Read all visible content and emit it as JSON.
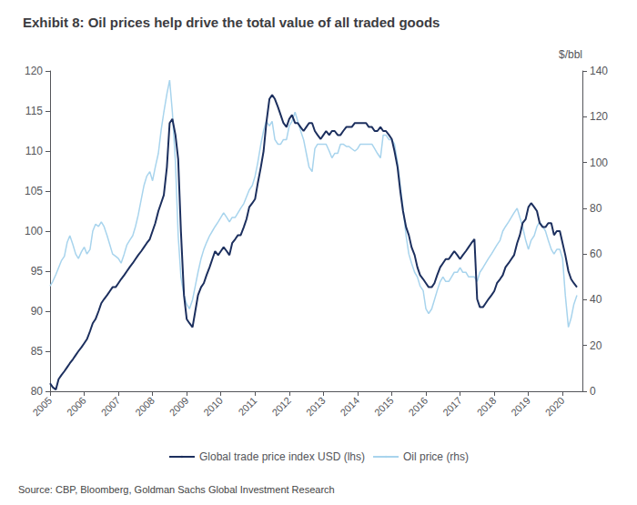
{
  "chart_data": {
    "type": "line",
    "title": "Exhibit 8: Oil prices help drive the total value of all traded goods",
    "annotations": [
      "Source: CBP, Bloomberg, Goldman Sachs Global Investment Research"
    ],
    "y2label": "$/bbl",
    "x": [
      2005.0,
      2005.08,
      2005.17,
      2005.25,
      2005.33,
      2005.42,
      2005.5,
      2005.58,
      2005.67,
      2005.75,
      2005.83,
      2005.92,
      2006.0,
      2006.08,
      2006.17,
      2006.25,
      2006.33,
      2006.42,
      2006.5,
      2006.58,
      2006.67,
      2006.75,
      2006.83,
      2006.92,
      2007.0,
      2007.08,
      2007.17,
      2007.25,
      2007.33,
      2007.42,
      2007.5,
      2007.58,
      2007.67,
      2007.75,
      2007.83,
      2007.92,
      2008.0,
      2008.08,
      2008.17,
      2008.25,
      2008.33,
      2008.42,
      2008.5,
      2008.58,
      2008.67,
      2008.75,
      2008.83,
      2008.92,
      2009.0,
      2009.08,
      2009.17,
      2009.25,
      2009.33,
      2009.42,
      2009.5,
      2009.58,
      2009.67,
      2009.75,
      2009.83,
      2009.92,
      2010.0,
      2010.08,
      2010.17,
      2010.25,
      2010.33,
      2010.42,
      2010.5,
      2010.58,
      2010.67,
      2010.75,
      2010.83,
      2010.92,
      2011.0,
      2011.08,
      2011.17,
      2011.25,
      2011.33,
      2011.42,
      2011.5,
      2011.58,
      2011.67,
      2011.75,
      2011.83,
      2011.92,
      2012.0,
      2012.08,
      2012.17,
      2012.25,
      2012.33,
      2012.42,
      2012.5,
      2012.58,
      2012.67,
      2012.75,
      2012.83,
      2012.92,
      2013.0,
      2013.08,
      2013.17,
      2013.25,
      2013.33,
      2013.42,
      2013.5,
      2013.58,
      2013.67,
      2013.75,
      2013.83,
      2013.92,
      2014.0,
      2014.08,
      2014.17,
      2014.25,
      2014.33,
      2014.42,
      2014.5,
      2014.58,
      2014.67,
      2014.75,
      2014.83,
      2014.92,
      2015.0,
      2015.08,
      2015.17,
      2015.25,
      2015.33,
      2015.42,
      2015.5,
      2015.58,
      2015.67,
      2015.75,
      2015.83,
      2015.92,
      2016.0,
      2016.08,
      2016.17,
      2016.25,
      2016.33,
      2016.42,
      2016.5,
      2016.58,
      2016.67,
      2016.75,
      2016.83,
      2016.92,
      2017.0,
      2017.08,
      2017.17,
      2017.25,
      2017.33,
      2017.42,
      2017.5,
      2017.58,
      2017.67,
      2017.75,
      2017.83,
      2017.92,
      2018.0,
      2018.08,
      2018.17,
      2018.25,
      2018.33,
      2018.42,
      2018.5,
      2018.58,
      2018.67,
      2018.75,
      2018.83,
      2018.92,
      2019.0,
      2019.08,
      2019.17,
      2019.25,
      2019.33,
      2019.42,
      2019.5,
      2019.58,
      2019.67,
      2019.75,
      2019.83,
      2019.92,
      2020.0,
      2020.08,
      2020.17,
      2020.25,
      2020.33,
      2020.42
    ],
    "series": [
      {
        "name": "Global trade price index USD (lhs)",
        "color": "#1c2f5e",
        "values": [
          81.0,
          80.5,
          80.2,
          81.5,
          82.0,
          82.5,
          83.0,
          83.5,
          84.0,
          84.5,
          85.0,
          85.5,
          86.0,
          86.5,
          87.5,
          88.5,
          89.0,
          90.0,
          91.0,
          91.5,
          92.0,
          92.5,
          93.0,
          93.0,
          93.5,
          94.0,
          94.5,
          95.0,
          95.5,
          96.0,
          96.5,
          97.0,
          97.5,
          98.0,
          98.5,
          99.0,
          100.0,
          101.0,
          102.5,
          103.5,
          104.5,
          108.0,
          113.5,
          114.0,
          112.0,
          109.0,
          100.0,
          92.0,
          89.0,
          88.5,
          88.0,
          90.0,
          92.0,
          93.0,
          93.5,
          94.5,
          95.5,
          96.5,
          97.5,
          97.0,
          97.5,
          98.0,
          97.5,
          97.0,
          98.5,
          99.0,
          99.5,
          99.5,
          100.5,
          101.5,
          103.0,
          103.5,
          104.0,
          106.0,
          108.0,
          110.0,
          113.5,
          116.5,
          117.0,
          116.5,
          115.5,
          114.5,
          113.5,
          113.0,
          114.0,
          114.5,
          113.5,
          113.5,
          113.0,
          112.5,
          113.0,
          113.5,
          113.5,
          112.5,
          112.0,
          111.5,
          112.0,
          112.5,
          112.0,
          112.5,
          112.5,
          112.0,
          112.0,
          112.5,
          113.0,
          113.0,
          113.0,
          113.5,
          113.5,
          113.5,
          113.5,
          113.5,
          113.0,
          113.0,
          112.5,
          112.5,
          113.0,
          112.5,
          112.5,
          112.0,
          111.5,
          110.0,
          108.0,
          105.0,
          102.5,
          100.5,
          99.5,
          98.0,
          97.0,
          95.5,
          94.5,
          94.0,
          93.5,
          93.0,
          93.0,
          93.5,
          94.5,
          95.5,
          96.0,
          96.5,
          96.5,
          97.0,
          97.5,
          97.0,
          96.5,
          97.0,
          97.5,
          98.0,
          98.5,
          99.0,
          91.5,
          90.5,
          90.5,
          91.0,
          91.5,
          92.0,
          92.5,
          93.5,
          94.0,
          94.5,
          95.5,
          96.0,
          96.5,
          97.0,
          98.5,
          99.5,
          101.0,
          101.5,
          103.0,
          103.5,
          103.0,
          102.5,
          101.0,
          100.5,
          100.5,
          101.0,
          101.0,
          99.5,
          100.0,
          100.0,
          98.5,
          97.0,
          95.0,
          94.0,
          93.5,
          93.0
        ]
      },
      {
        "name": "Oil price (rhs)",
        "color": "#a8d4ed",
        "axis": "y2",
        "values": [
          46.0,
          48.0,
          51.0,
          54.0,
          57.0,
          59.0,
          65.0,
          68.0,
          64.0,
          60.0,
          58.0,
          61.0,
          63.0,
          60.0,
          62.0,
          70.0,
          73.0,
          72.0,
          74.0,
          72.0,
          68.0,
          64.0,
          60.0,
          59.0,
          58.0,
          56.0,
          60.0,
          64.0,
          66.0,
          68.0,
          72.0,
          77.0,
          84.0,
          90.0,
          94.0,
          96.0,
          92.0,
          98.0,
          104.0,
          114.0,
          122.0,
          130.0,
          136.0,
          122.0,
          100.0,
          68.0,
          50.0,
          42.0,
          38.0,
          36.0,
          40.0,
          46.0,
          52.0,
          58.0,
          62.0,
          65.0,
          68.0,
          70.0,
          72.0,
          74.0,
          76.0,
          78.0,
          76.0,
          74.0,
          76.0,
          76.0,
          78.0,
          80.0,
          82.0,
          85.0,
          88.0,
          90.0,
          94.0,
          100.0,
          108.0,
          114.0,
          118.0,
          116.0,
          118.0,
          110.0,
          108.0,
          108.0,
          110.0,
          110.0,
          116.0,
          118.0,
          122.0,
          118.0,
          114.0,
          110.0,
          104.0,
          98.0,
          96.0,
          106.0,
          108.0,
          108.0,
          108.0,
          108.0,
          105.0,
          102.0,
          104.0,
          104.0,
          108.0,
          108.0,
          107.0,
          107.0,
          106.0,
          105.0,
          106.0,
          108.0,
          108.0,
          108.0,
          108.0,
          108.0,
          106.0,
          104.0,
          102.0,
          112.0,
          112.0,
          110.0,
          110.0,
          108.0,
          100.0,
          90.0,
          80.0,
          68.0,
          60.0,
          56.0,
          52.0,
          50.0,
          46.0,
          44.0,
          36.0,
          34.0,
          36.0,
          40.0,
          44.0,
          48.0,
          50.0,
          48.0,
          48.0,
          50.0,
          52.0,
          52.0,
          54.0,
          52.0,
          52.0,
          50.0,
          50.0,
          50.0,
          48.0,
          52.0,
          54.0,
          56.0,
          58.0,
          60.0,
          62.0,
          64.0,
          66.0,
          70.0,
          72.0,
          74.0,
          76.0,
          78.0,
          80.0,
          76.0,
          72.0,
          66.0,
          62.0,
          66.0,
          68.0,
          72.0,
          74.0,
          72.0,
          70.0,
          66.0,
          62.0,
          60.0,
          62.0,
          62.0,
          58.0,
          42.0,
          28.0,
          32.0,
          38.0,
          42.0
        ]
      }
    ],
    "xlim": [
      2005.0,
      2020.58
    ],
    "xticks": [
      2005,
      2006,
      2007,
      2008,
      2009,
      2010,
      2011,
      2012,
      2013,
      2014,
      2015,
      2016,
      2017,
      2018,
      2019,
      2020
    ],
    "ylim": [
      80,
      120
    ],
    "yticks": [
      80,
      85,
      90,
      95,
      100,
      105,
      110,
      115,
      120
    ],
    "y2lim": [
      0,
      140
    ],
    "y2ticks": [
      0,
      20,
      40,
      60,
      80,
      100,
      120,
      140
    ],
    "grid": false,
    "legend": "bottom"
  }
}
